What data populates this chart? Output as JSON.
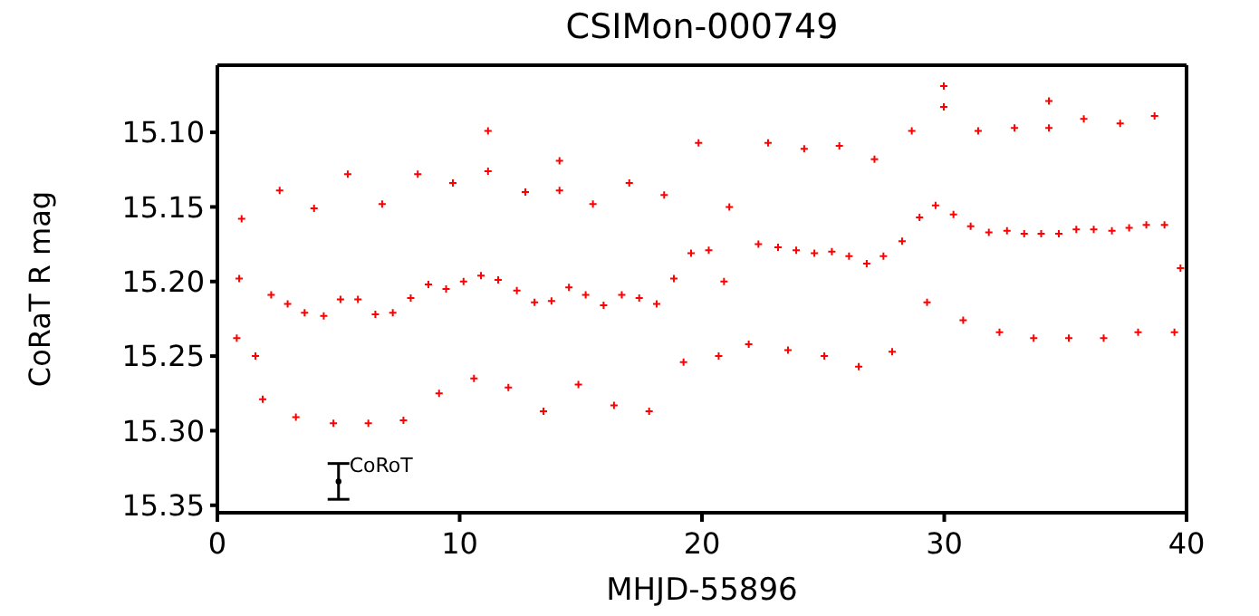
{
  "chart_data": {
    "type": "scatter",
    "title": "CSIMon-000749",
    "xlabel": "MHJD-55896",
    "ylabel": "CoRaT R mag",
    "xlim": [
      0,
      40
    ],
    "ylim": [
      15.355,
      15.055
    ],
    "xticks": [
      0,
      10,
      20,
      30,
      40
    ],
    "yticks": [
      {
        "value": 15.1,
        "label": "15.10"
      },
      15.15,
      {
        "value": 15.2,
        "label": "15.20"
      },
      15.25,
      {
        "value": 15.3,
        "label": "15.30"
      },
      15.35
    ],
    "marker": "cross",
    "grid": false,
    "legend": false,
    "series": [
      {
        "color": "#ff0000",
        "x": [
          0.8,
          1.0,
          1.57,
          1.87,
          2.57,
          3.24,
          3.99,
          4.79,
          5.38,
          6.23,
          6.8,
          7.68,
          8.27,
          9.15,
          9.72,
          10.59,
          11.17,
          11.17,
          12.01,
          12.71,
          13.46,
          14.12,
          14.12,
          14.9,
          15.5,
          16.37,
          17.0,
          17.82,
          18.44,
          19.24,
          19.86,
          20.69,
          21.13,
          21.93,
          22.73,
          23.55,
          24.22,
          25.05,
          25.67,
          26.47,
          27.12,
          27.85,
          28.66,
          29.29,
          29.98,
          29.98,
          30.78,
          31.4,
          32.28,
          32.9,
          33.69,
          34.32,
          34.32,
          35.14,
          35.76,
          36.58,
          37.26,
          38.0,
          38.68,
          39.5,
          39.75,
          0.9,
          2.22,
          2.9,
          3.6,
          4.39,
          5.08,
          5.8,
          6.52,
          7.24,
          7.98,
          8.71,
          9.44,
          10.16,
          10.88,
          11.59,
          12.36,
          13.09,
          13.79,
          14.51,
          15.2,
          15.94,
          16.69,
          17.41,
          18.13,
          18.84,
          19.55,
          20.28,
          20.91,
          22.33,
          23.14,
          23.89,
          24.64,
          25.36,
          26.07,
          26.8,
          27.49,
          28.26,
          28.98,
          29.64,
          30.38,
          31.09,
          31.84,
          32.59,
          33.3,
          34.0,
          34.73,
          35.45,
          36.17,
          36.92,
          37.63,
          38.34,
          39.09
        ],
        "values": [
          15.238,
          15.158,
          15.25,
          15.279,
          15.139,
          15.291,
          15.151,
          15.295,
          15.128,
          15.295,
          15.148,
          15.293,
          15.128,
          15.275,
          15.134,
          15.265,
          15.126,
          15.099,
          15.271,
          15.14,
          15.287,
          15.139,
          15.119,
          15.269,
          15.148,
          15.283,
          15.134,
          15.287,
          15.142,
          15.254,
          15.107,
          15.25,
          15.15,
          15.242,
          15.107,
          15.246,
          15.111,
          15.25,
          15.109,
          15.257,
          15.118,
          15.247,
          15.099,
          15.214,
          15.083,
          15.069,
          15.226,
          15.099,
          15.234,
          15.097,
          15.238,
          15.097,
          15.079,
          15.238,
          15.091,
          15.238,
          15.094,
          15.234,
          15.089,
          15.234,
          15.191,
          15.198,
          15.209,
          15.215,
          15.221,
          15.223,
          15.212,
          15.212,
          15.222,
          15.221,
          15.211,
          15.202,
          15.205,
          15.2,
          15.196,
          15.199,
          15.206,
          15.214,
          15.213,
          15.204,
          15.209,
          15.216,
          15.209,
          15.211,
          15.215,
          15.198,
          15.181,
          15.179,
          15.2,
          15.175,
          15.177,
          15.179,
          15.181,
          15.18,
          15.183,
          15.188,
          15.183,
          15.173,
          15.157,
          15.149,
          15.155,
          15.163,
          15.167,
          15.166,
          15.168,
          15.168,
          15.168,
          15.165,
          15.165,
          15.166,
          15.164,
          15.162,
          15.162
        ]
      },
      {
        "color": "#000000",
        "marker": "circle",
        "x": [
          5
        ],
        "values": [
          15.334
        ],
        "errors": [
          0.012
        ]
      }
    ],
    "annotations": [
      {
        "text": "CoRoT",
        "x": 5,
        "y": 15.323
      }
    ]
  }
}
